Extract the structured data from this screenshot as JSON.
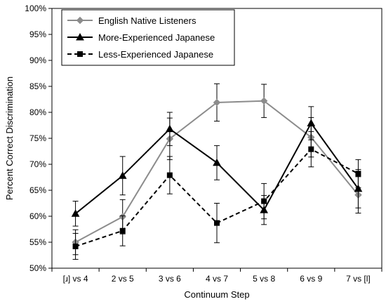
{
  "chart_data": {
    "type": "line",
    "xlabel": "Continuum Step",
    "ylabel": "Percent Correct Discrimination",
    "ylim": [
      50,
      100
    ],
    "y_ticks": [
      50,
      55,
      60,
      65,
      70,
      75,
      80,
      85,
      90,
      95,
      100
    ],
    "y_tick_labels": [
      "50%",
      "55%",
      "60%",
      "65%",
      "70%",
      "75%",
      "80%",
      "85%",
      "90%",
      "95%",
      "100%"
    ],
    "categories": [
      "[ɹ] vs 4",
      "2 vs 5",
      "3 vs 6",
      "4 vs 7",
      "5 vs 8",
      "6 vs 9",
      "7 vs [l]"
    ],
    "legend_position": "top-left",
    "series": [
      {
        "name": "English Native Listeners",
        "color": "#8c8c8c",
        "line_style": "solid",
        "marker": "diamond",
        "values": [
          55.0,
          59.9,
          74.9,
          81.9,
          82.2,
          75.2,
          64.1
        ],
        "error": [
          2.4,
          3.3,
          4.0,
          3.6,
          3.2,
          3.8,
          3.5
        ]
      },
      {
        "name": "More-Experienced Japanese",
        "color": "#000000",
        "line_style": "solid",
        "marker": "triangle",
        "values": [
          60.5,
          67.8,
          76.8,
          70.3,
          61.2,
          77.9,
          65.3
        ],
        "error": [
          2.4,
          3.7,
          3.2,
          3.3,
          2.8,
          3.2,
          3.7
        ]
      },
      {
        "name": "Less-Experienced Japanese",
        "color": "#000000",
        "line_style": "dashed",
        "marker": "square",
        "values": [
          54.2,
          57.2,
          67.9,
          58.7,
          62.9,
          72.9,
          68.2
        ],
        "error": [
          2.5,
          2.9,
          3.6,
          3.8,
          3.4,
          3.4,
          2.7
        ]
      }
    ]
  }
}
